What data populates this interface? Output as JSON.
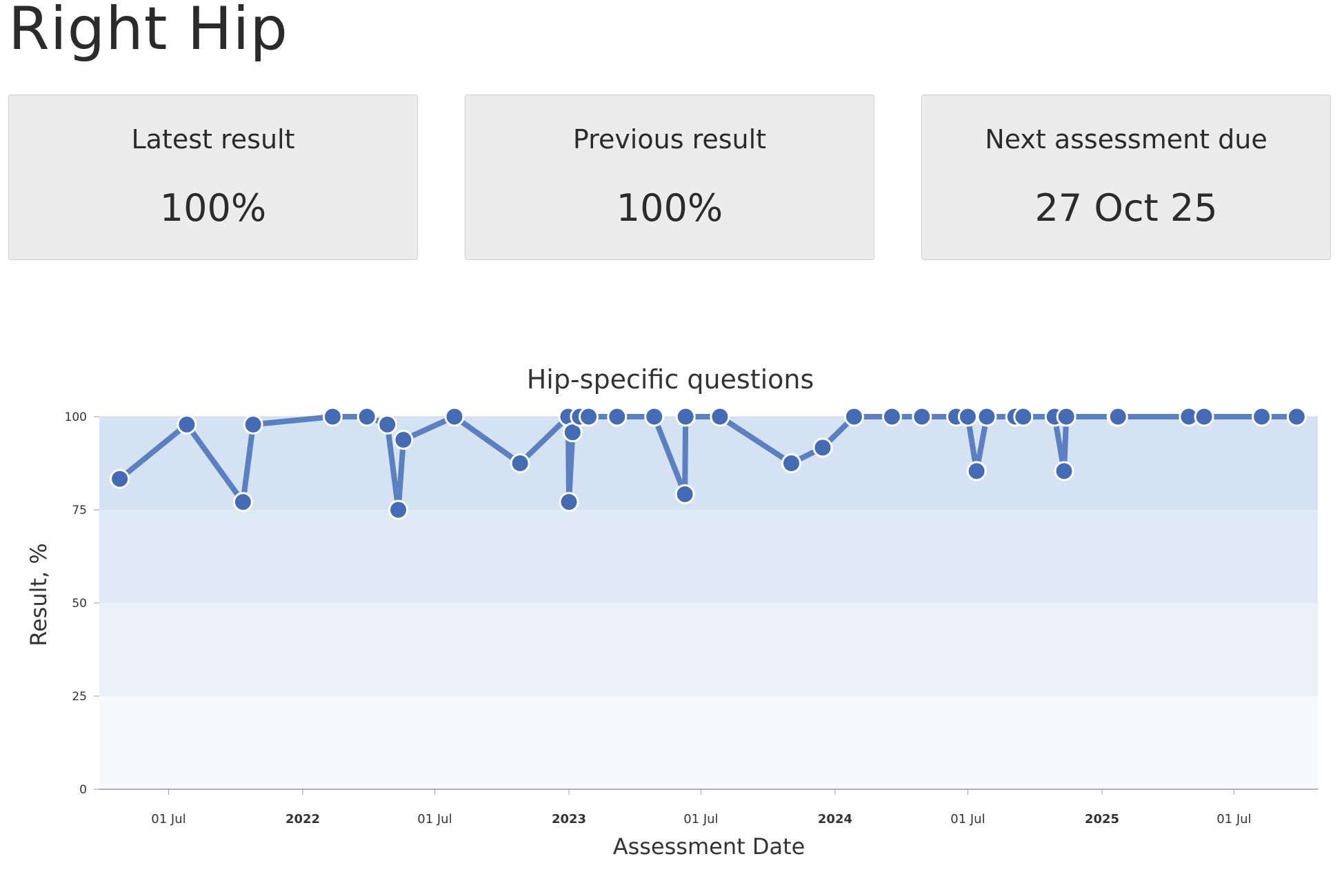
{
  "page": {
    "title": "Right Hip"
  },
  "cards": [
    {
      "label": "Latest result",
      "value": "100%"
    },
    {
      "label": "Previous result",
      "value": "100%"
    },
    {
      "label": "Next assessment due",
      "value": "27 Oct 25"
    }
  ],
  "chart_data": {
    "type": "line",
    "title": "Hip-specific questions",
    "xlabel": "Assessment Date",
    "ylabel": "Result, %",
    "xlim": [
      "2021-03-28",
      "2025-10-24"
    ],
    "ylim": [
      0,
      100
    ],
    "yticks": [
      {
        "value": 0,
        "label": "0"
      },
      {
        "value": 25,
        "label": "25"
      },
      {
        "value": 50,
        "label": "50"
      },
      {
        "value": 75,
        "label": "75"
      },
      {
        "value": 100,
        "label": "100"
      }
    ],
    "xticks": [
      {
        "date": "2021-07-01",
        "label": "01 Jul",
        "bold": false
      },
      {
        "date": "2022-01-01",
        "label": "2022",
        "bold": true
      },
      {
        "date": "2022-07-01",
        "label": "01 Jul",
        "bold": false
      },
      {
        "date": "2023-01-01",
        "label": "2023",
        "bold": true
      },
      {
        "date": "2023-07-01",
        "label": "01 Jul",
        "bold": false
      },
      {
        "date": "2024-01-01",
        "label": "2024",
        "bold": true
      },
      {
        "date": "2024-07-01",
        "label": "01 Jul",
        "bold": false
      },
      {
        "date": "2025-01-01",
        "label": "2025",
        "bold": true
      },
      {
        "date": "2025-07-01",
        "label": "01 Jul",
        "bold": false
      }
    ],
    "bands": [
      {
        "from": 75,
        "to": 100,
        "color": "#d5e2f3"
      },
      {
        "from": 50,
        "to": 75,
        "color": "#e0eaf6"
      },
      {
        "from": 25,
        "to": 50,
        "color": "#ebf1fa"
      },
      {
        "from": 0,
        "to": 25,
        "color": "#f7f9fd"
      }
    ],
    "colors": {
      "line": "#5b7fbf",
      "marker": "#456bb4",
      "marker_stroke": "#ffffff"
    },
    "grid": false,
    "series": [
      {
        "x": [
          "2021-04-25",
          "2021-07-26",
          "2021-10-11",
          "2021-10-25",
          "2022-02-11",
          "2022-03-30",
          "2022-04-27",
          "2022-05-12",
          "2022-05-19",
          "2022-07-28",
          "2022-10-26",
          "2022-12-31",
          "2023-01-01",
          "2023-01-06",
          "2023-01-16",
          "2023-01-28",
          "2023-03-08",
          "2023-04-28",
          "2023-06-09",
          "2023-06-10",
          "2023-07-27",
          "2023-11-02",
          "2023-12-15",
          "2024-01-27",
          "2024-03-19",
          "2024-04-29",
          "2024-06-15",
          "2024-07-01",
          "2024-07-13",
          "2024-07-27",
          "2024-09-04",
          "2024-09-15",
          "2024-10-28",
          "2024-11-10",
          "2024-11-13",
          "2025-01-21",
          "2025-01-23",
          "2025-04-30",
          "2025-05-21",
          "2025-08-08",
          "2025-09-25"
        ],
        "y": [
          83.3,
          97.9,
          77.1,
          97.9,
          100,
          100,
          97.9,
          75,
          93.8,
          100,
          87.5,
          100,
          77.1,
          95.8,
          100,
          100,
          100,
          100,
          79.2,
          100,
          100,
          87.5,
          91.7,
          100,
          100,
          100,
          100,
          100,
          85.4,
          100,
          100,
          100,
          100,
          85.4,
          100,
          100,
          100,
          100,
          100,
          100,
          100
        ]
      }
    ]
  }
}
